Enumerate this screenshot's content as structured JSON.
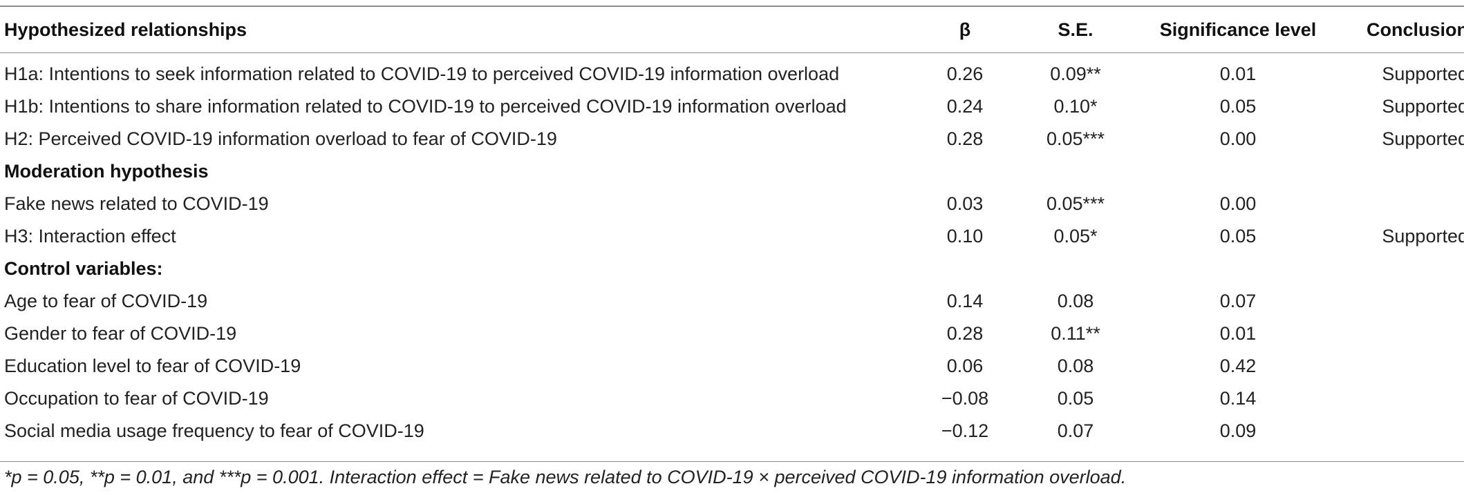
{
  "headers": {
    "relationships": "Hypothesized relationships",
    "beta": "β",
    "se": "S.E.",
    "significance": "Significance level",
    "conclusion": "Conclusion"
  },
  "rows": [
    {
      "label": "H1a: Intentions to seek information related to COVID-19 to perceived COVID-19 information overload",
      "beta": "0.26",
      "se": "0.09**",
      "sig": "0.01",
      "conclusion": "Supported"
    },
    {
      "label": "H1b: Intentions to share information related to COVID-19 to perceived COVID-19 information overload",
      "beta": "0.24",
      "se": "0.10*",
      "sig": "0.05",
      "conclusion": "Supported"
    },
    {
      "label": "H2: Perceived COVID-19 information overload to fear of COVID-19",
      "beta": "0.28",
      "se": "0.05***",
      "sig": "0.00",
      "conclusion": "Supported"
    },
    {
      "section": "Moderation hypothesis"
    },
    {
      "label": "Fake news related to COVID-19",
      "beta": "0.03",
      "se": "0.05***",
      "sig": "0.00",
      "conclusion": ""
    },
    {
      "label": "H3: Interaction effect",
      "beta": "0.10",
      "se": "0.05*",
      "sig": "0.05",
      "conclusion": "Supported"
    },
    {
      "section": "Control variables:"
    },
    {
      "label": "Age to fear of COVID-19",
      "beta": "0.14",
      "se": "0.08",
      "sig": "0.07",
      "conclusion": ""
    },
    {
      "label": "Gender to fear of COVID-19",
      "beta": "0.28",
      "se": "0.11**",
      "sig": "0.01",
      "conclusion": ""
    },
    {
      "label": "Education level to fear of COVID-19",
      "beta": "0.06",
      "se": "0.08",
      "sig": "0.42",
      "conclusion": ""
    },
    {
      "label": "Occupation to fear of COVID-19",
      "beta": "−0.08",
      "se": "0.05",
      "sig": "0.14",
      "conclusion": ""
    },
    {
      "label": "Social media usage frequency to fear of COVID-19",
      "beta": "−0.12",
      "se": "0.07",
      "sig": "0.09",
      "conclusion": ""
    }
  ],
  "footnote": "*p = 0.05, **p = 0.01, and ***p = 0.001. Interaction effect = Fake news related to COVID-19 × perceived COVID-19 information overload."
}
